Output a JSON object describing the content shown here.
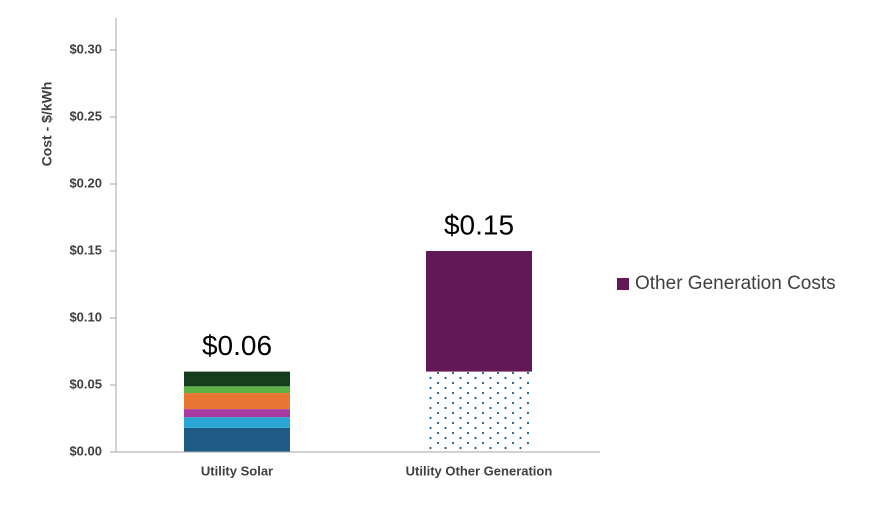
{
  "chart_data": {
    "type": "bar",
    "stacked": true,
    "title": "",
    "xlabel": "",
    "ylabel": "Cost - $/kWh",
    "ylim": [
      0,
      0.3
    ],
    "yticks": [
      0.0,
      0.05,
      0.1,
      0.15,
      0.2,
      0.25,
      0.3
    ],
    "ytick_labels": [
      "$0.00",
      "$0.05",
      "$0.10",
      "$0.15",
      "$0.20",
      "$0.25",
      "$0.30"
    ],
    "grid": false,
    "categories": [
      "Utility Solar",
      "Utility Other Generation"
    ],
    "totals": [
      0.06,
      0.15
    ],
    "total_labels": [
      "$0.06",
      "$0.15"
    ],
    "stacks": [
      {
        "category": "Utility Solar",
        "segments": [
          {
            "value": 0.018,
            "color": "#1f5c85"
          },
          {
            "value": 0.008,
            "color": "#2aa6d6"
          },
          {
            "value": 0.006,
            "color": "#a63aa0"
          },
          {
            "value": 0.012,
            "color": "#e97733"
          },
          {
            "value": 0.005,
            "color": "#5fb046"
          },
          {
            "value": 0.011,
            "color": "#163d1c"
          }
        ]
      },
      {
        "category": "Utility Other Generation",
        "segments": [
          {
            "value": 0.06,
            "color": "#1f5c85",
            "pattern": "dots"
          },
          {
            "value": 0.09,
            "color": "#631957",
            "series": "Other Generation Costs"
          }
        ]
      }
    ],
    "legend": {
      "position": "right",
      "entries": [
        {
          "label": "Other Generation Costs",
          "color": "#631957"
        }
      ]
    }
  }
}
